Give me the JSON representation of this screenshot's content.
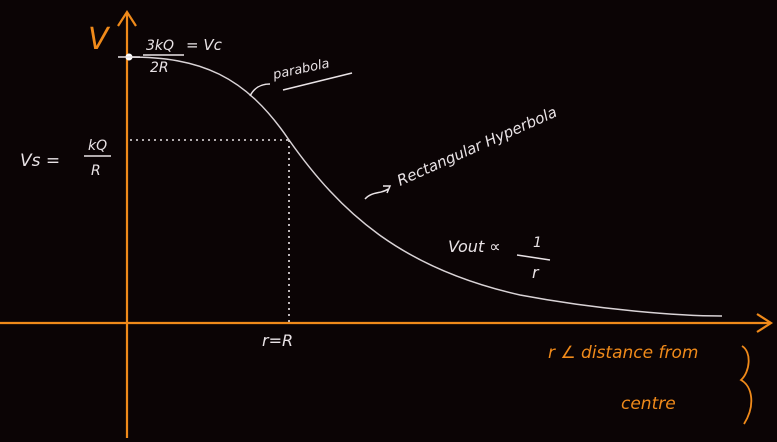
{
  "colors": {
    "background": "#0b0405",
    "axis": "#f08a1a",
    "curve": "#d9d3d6",
    "text_white": "#e9e3e6",
    "text_orange": "#f08a1a"
  },
  "labels": {
    "y_axis": "V",
    "vc_top_num": "3kQ",
    "vc_top_den": "2R",
    "vc_top_eq": "= Vc",
    "parabola": "parabola",
    "rect_hyperbola": "Rectangular Hyperbola",
    "vs_left": "Vs =",
    "vs_num": "kQ",
    "vs_den": "R",
    "r_eq_R": "r=R",
    "vout": "Vout ∝",
    "vout_num": "1",
    "vout_den": "r",
    "x_axis_line1": "r ∠ distance from",
    "x_axis_line2": "centre"
  }
}
